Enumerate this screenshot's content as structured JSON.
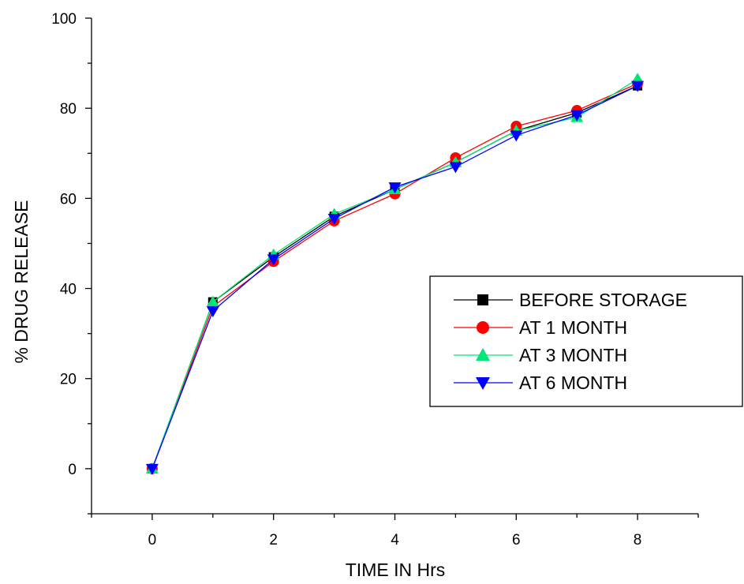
{
  "chart_data": {
    "type": "line",
    "xlabel": "TIME IN Hrs",
    "ylabel": "% DRUG RELEASE",
    "xlim": [
      -1,
      9
    ],
    "ylim": [
      -10,
      100
    ],
    "x_ticks": [
      0,
      2,
      4,
      6,
      8
    ],
    "y_ticks": [
      0,
      20,
      40,
      60,
      80,
      100
    ],
    "x_tick_labels": [
      "0",
      "2",
      "4",
      "6",
      "8"
    ],
    "y_tick_labels": [
      "0",
      "20",
      "40",
      "60",
      "80",
      "100"
    ],
    "grid": false,
    "legend_position": "right",
    "x": [
      0,
      1,
      2,
      3,
      4,
      5,
      6,
      7,
      8
    ],
    "series": [
      {
        "name": "BEFORE STORAGE",
        "color": "#000000",
        "marker": "square",
        "values": [
          0,
          37,
          47,
          56,
          62,
          68,
          75,
          79,
          85
        ]
      },
      {
        "name": "AT 1 MONTH",
        "color": "#ff0000",
        "marker": "circle",
        "values": [
          0,
          36,
          46,
          55,
          61,
          69,
          76,
          79.5,
          85.5
        ]
      },
      {
        "name": "AT 3 MONTH",
        "color": "#00e676",
        "marker": "triangle-up",
        "values": [
          0,
          37,
          47.5,
          56.5,
          62,
          68,
          75,
          78,
          86.5
        ]
      },
      {
        "name": "AT 6 MONTH",
        "color": "#0000ff",
        "marker": "triangle-down",
        "values": [
          0,
          35,
          46.5,
          55.5,
          62.5,
          67,
          74,
          78.5,
          85
        ]
      }
    ]
  }
}
